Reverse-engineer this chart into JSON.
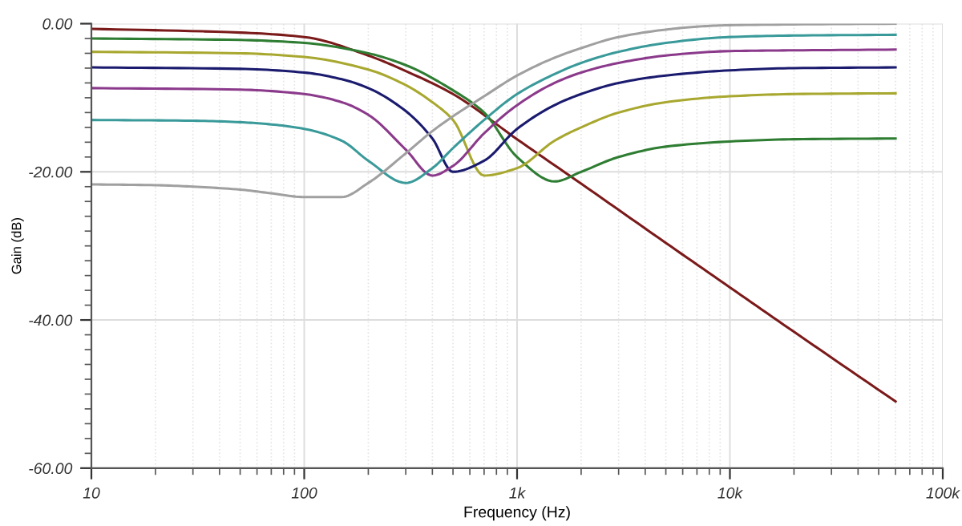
{
  "chart_data": {
    "type": "line",
    "xlabel": "Frequency (Hz)",
    "ylabel": "Gain (dB)",
    "log": "x",
    "xlim": [
      10,
      100000
    ],
    "xticks": [
      {
        "value": 10,
        "label": "10"
      },
      {
        "value": 100,
        "label": "100"
      },
      {
        "value": 1000,
        "label": "1k"
      },
      {
        "value": 10000,
        "label": "10k"
      },
      {
        "value": 100000,
        "label": "100k"
      }
    ],
    "ylim": [
      -60,
      0
    ],
    "yticks": [
      {
        "value": 0,
        "label": "0.00"
      },
      {
        "value": -20,
        "label": "-20.00"
      },
      {
        "value": -40,
        "label": "-40.00"
      },
      {
        "value": -60,
        "label": "-60.00"
      }
    ],
    "grid": true,
    "legend": false,
    "marker": "none",
    "line_style": "solid",
    "series": [
      {
        "color": "#7b1a1a",
        "x": [
          10,
          50,
          100,
          200,
          300,
          500,
          1000,
          2000,
          5000,
          10000,
          20000,
          60000
        ],
        "values": [
          -0.7,
          -1.2,
          -1.8,
          -4.3,
          -6.4,
          -9.5,
          -15.6,
          -21.6,
          -29.6,
          -35.6,
          -41.6,
          -51
        ]
      },
      {
        "color": "#2e7d32",
        "x": [
          10,
          50,
          100,
          200,
          300,
          500,
          700,
          1000,
          1500,
          2000,
          3000,
          5000,
          10000,
          20000,
          60000
        ],
        "values": [
          -2,
          -2.2,
          -2.6,
          -4,
          -5.6,
          -9,
          -12,
          -18,
          -21.3,
          -20,
          -18,
          -16.6,
          -15.9,
          -15.6,
          -15.5
        ]
      },
      {
        "color": "#a8a830",
        "x": [
          10,
          50,
          100,
          200,
          300,
          400,
          500,
          700,
          1000,
          1500,
          2000,
          3000,
          5000,
          10000,
          20000,
          60000
        ],
        "values": [
          -3.8,
          -4,
          -4.5,
          -6.2,
          -8.3,
          -10.6,
          -13,
          -20.5,
          -19.5,
          -15.8,
          -14,
          -12,
          -10.6,
          -9.8,
          -9.5,
          -9.4
        ]
      },
      {
        "color": "#1a1a6e",
        "x": [
          10,
          50,
          100,
          150,
          200,
          300,
          400,
          500,
          700,
          1000,
          1500,
          2000,
          3000,
          5000,
          10000,
          20000,
          60000
        ],
        "values": [
          -5.9,
          -6.1,
          -6.6,
          -7.5,
          -8.7,
          -11.8,
          -15.5,
          -20,
          -18.5,
          -14.2,
          -11,
          -9.5,
          -8,
          -7,
          -6.3,
          -6,
          -5.9
        ]
      },
      {
        "color": "#8b3a8b",
        "x": [
          10,
          50,
          100,
          150,
          200,
          300,
          400,
          500,
          700,
          1000,
          1500,
          2000,
          3000,
          5000,
          10000,
          20000,
          60000
        ],
        "values": [
          -8.7,
          -8.9,
          -9.5,
          -10.6,
          -12.3,
          -17,
          -20.5,
          -19.2,
          -14.8,
          -11,
          -8,
          -6.6,
          -5.3,
          -4.3,
          -3.7,
          -3.6,
          -3.5
        ]
      },
      {
        "color": "#3a9a9a",
        "x": [
          10,
          30,
          50,
          70,
          100,
          150,
          200,
          300,
          400,
          500,
          700,
          1000,
          1500,
          2000,
          3000,
          5000,
          10000,
          20000,
          60000
        ],
        "values": [
          -13,
          -13.1,
          -13.3,
          -13.6,
          -14.2,
          -15.8,
          -18.5,
          -21.5,
          -19.5,
          -16.8,
          -13,
          -9.5,
          -6.8,
          -5.3,
          -3.8,
          -2.6,
          -1.8,
          -1.6,
          -1.5
        ]
      },
      {
        "color": "#a0a0a0",
        "x": [
          10,
          20,
          30,
          50,
          70,
          100,
          150,
          200,
          300,
          400,
          500,
          700,
          1000,
          1500,
          2000,
          3000,
          5000,
          7000,
          10000,
          20000,
          60000
        ],
        "values": [
          -21.7,
          -21.8,
          -22,
          -22.4,
          -22.9,
          -23.4,
          -23.4,
          -21.5,
          -17.5,
          -14.5,
          -12.5,
          -9.8,
          -7,
          -4.6,
          -3.3,
          -1.8,
          -0.8,
          -0.4,
          -0.2,
          -0.1,
          0
        ]
      }
    ]
  }
}
